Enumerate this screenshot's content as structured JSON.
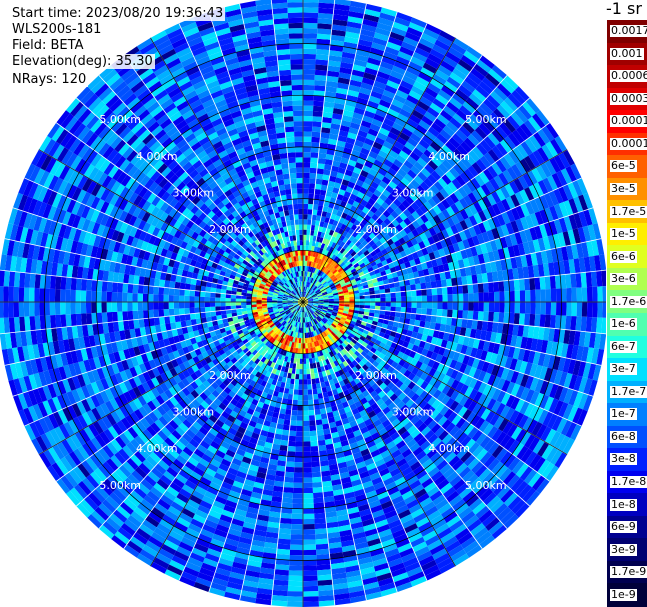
{
  "info": {
    "start_time": "Start time: 2023/08/20 19:36:43",
    "instrument": "WLS200s-181",
    "field": "Field: BETA",
    "elevation": "Elevation(deg): 35.30",
    "nrays": "NRays: 120"
  },
  "legend_title": "-1 sr",
  "colors": {
    "background": "#ffffff",
    "grid": "#000000",
    "ray_gap": "#ffffff",
    "ring_label": "#ffffff"
  },
  "colorbar": {
    "entries": [
      {
        "label": "0.0017",
        "color": "#800000"
      },
      {
        "label": "0.001",
        "color": "#a00000"
      },
      {
        "label": "0.0006",
        "color": "#c00000"
      },
      {
        "label": "0.0003",
        "color": "#e00000"
      },
      {
        "label": "0.00017",
        "color": "#ff0000"
      },
      {
        "label": "0.0001",
        "color": "#ff3000"
      },
      {
        "label": "6e-5",
        "color": "#ff6000"
      },
      {
        "label": "3e-5",
        "color": "#ff9000"
      },
      {
        "label": "1.7e-5",
        "color": "#ffc000"
      },
      {
        "label": "1e-5",
        "color": "#ffee00"
      },
      {
        "label": "6e-6",
        "color": "#e0ff20"
      },
      {
        "label": "3e-6",
        "color": "#b0ff50"
      },
      {
        "label": "1.7e-6",
        "color": "#80ff80"
      },
      {
        "label": "1e-6",
        "color": "#50ffb0"
      },
      {
        "label": "6e-7",
        "color": "#20ffe0"
      },
      {
        "label": "3e-7",
        "color": "#00e0ff"
      },
      {
        "label": "1.7e-7",
        "color": "#00b0ff"
      },
      {
        "label": "1e-7",
        "color": "#0080ff"
      },
      {
        "label": "6e-8",
        "color": "#0050ff"
      },
      {
        "label": "3e-8",
        "color": "#0020ff"
      },
      {
        "label": "1.7e-8",
        "color": "#0000f0"
      },
      {
        "label": "1e-8",
        "color": "#0000c0"
      },
      {
        "label": "6e-9",
        "color": "#000090"
      },
      {
        "label": "3e-9",
        "color": "#000070"
      },
      {
        "label": "1.7e-9",
        "color": "#000050"
      },
      {
        "label": "1e-9",
        "color": "#00003a"
      }
    ]
  },
  "chart_data": {
    "type": "heatmap",
    "projection": "polar (PPI scan)",
    "title": "",
    "field": "BETA",
    "units": "-1 sr",
    "nrays": 120,
    "elevation_deg": 35.3,
    "max_range_km": 5.9,
    "range_rings_km": [
      1.0,
      2.0,
      3.0,
      4.0,
      5.0
    ],
    "ring_labels": [
      "2.00km",
      "3.00km",
      "4.00km",
      "5.00km"
    ],
    "spoke_angles_deg": [
      0,
      30,
      60,
      90,
      120,
      150,
      180,
      210,
      240,
      270,
      300,
      330
    ],
    "value_scale": "log",
    "value_range": [
      1e-09,
      0.0017
    ],
    "features": [
      {
        "description": "aerosol/cloud return ring",
        "range_km": [
          0.7,
          1.0
        ],
        "beta": 3e-05
      },
      {
        "description": "background clear air",
        "range_km": [
          1.5,
          5.9
        ],
        "beta": 3e-08
      }
    ]
  }
}
